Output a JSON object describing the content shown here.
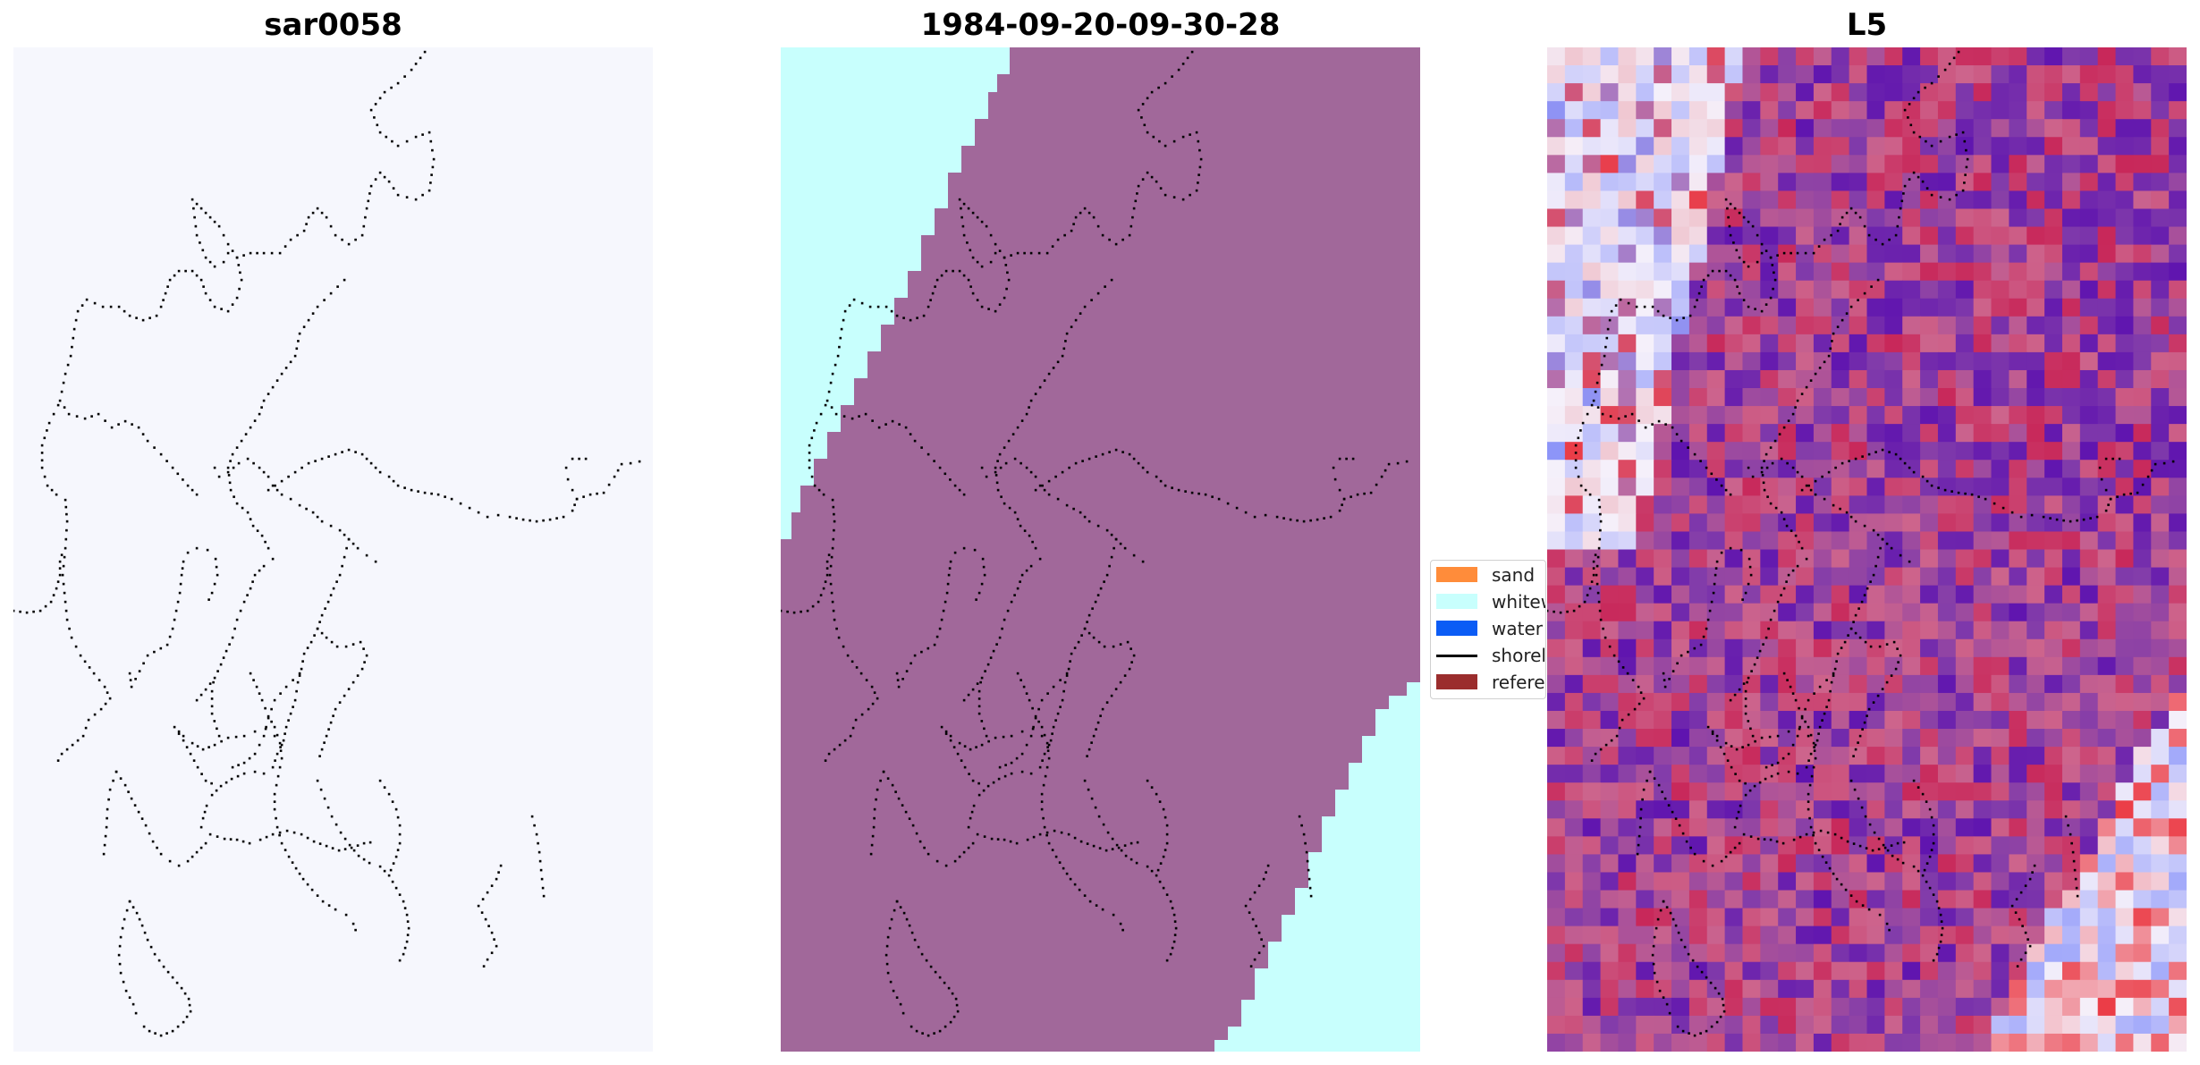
{
  "panels": [
    {
      "title": "sar0058"
    },
    {
      "title": "1984-09-20-09-30-28"
    },
    {
      "title": "L5"
    }
  ],
  "legend": {
    "items": [
      {
        "label": "sand",
        "kind": "patch",
        "color": "#ff8c3a"
      },
      {
        "label": "whitew",
        "kind": "patch",
        "color": "#c8fffd"
      },
      {
        "label": "water",
        "kind": "patch",
        "color": "#0b5cf5"
      },
      {
        "label": "shorel",
        "kind": "line",
        "color": "#000000"
      },
      {
        "label": "referer",
        "kind": "patch",
        "color": "#9b2d2d"
      }
    ]
  },
  "colors": {
    "sar_background": "#f6f7fd",
    "classification_sand": "#a1689a",
    "classification_whitewater": "#c8fffd",
    "reference_points": "#000000"
  }
}
